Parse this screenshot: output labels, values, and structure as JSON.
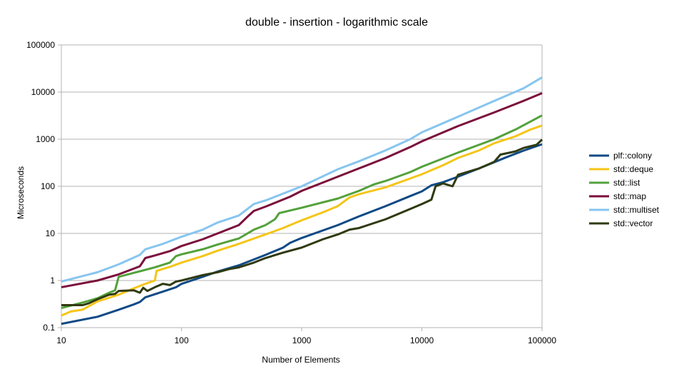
{
  "chart_data": {
    "type": "line",
    "title": "double - insertion - logarithmic scale",
    "xlabel": "Number of Elements",
    "ylabel": "Microseconds",
    "xscale": "log",
    "yscale": "log",
    "xlim": [
      10,
      100000
    ],
    "ylim": [
      0.1,
      100000
    ],
    "x_ticks": [
      "10",
      "100",
      "1000",
      "10000",
      "100000"
    ],
    "y_ticks": [
      "0.1",
      "1",
      "10",
      "100",
      "1000",
      "10000",
      "100000"
    ],
    "grid": "horizontal",
    "legend_position": "right",
    "series": [
      {
        "name": "plf::colony",
        "color": "#0f4a85",
        "points": [
          [
            10,
            0.12
          ],
          [
            20,
            0.17
          ],
          [
            30,
            0.24
          ],
          [
            40,
            0.31
          ],
          [
            45,
            0.35
          ],
          [
            50,
            0.44
          ],
          [
            70,
            0.58
          ],
          [
            90,
            0.72
          ],
          [
            100,
            0.85
          ],
          [
            150,
            1.2
          ],
          [
            200,
            1.55
          ],
          [
            300,
            2.1
          ],
          [
            400,
            2.8
          ],
          [
            500,
            3.5
          ],
          [
            700,
            5.0
          ],
          [
            800,
            6.3
          ],
          [
            1000,
            8
          ],
          [
            2000,
            15
          ],
          [
            3000,
            23
          ],
          [
            5000,
            38
          ],
          [
            8000,
            62
          ],
          [
            10000,
            78
          ],
          [
            12000,
            105
          ],
          [
            15000,
            122
          ],
          [
            20000,
            160
          ],
          [
            30000,
            240
          ],
          [
            50000,
            410
          ],
          [
            70000,
            570
          ],
          [
            100000,
            780
          ]
        ]
      },
      {
        "name": "std::deque",
        "color": "#f5c518",
        "points": [
          [
            10,
            0.18
          ],
          [
            12,
            0.22
          ],
          [
            15,
            0.24
          ],
          [
            20,
            0.36
          ],
          [
            30,
            0.5
          ],
          [
            40,
            0.68
          ],
          [
            50,
            0.85
          ],
          [
            60,
            1.0
          ],
          [
            62,
            1.6
          ],
          [
            80,
            1.95
          ],
          [
            100,
            2.4
          ],
          [
            150,
            3.3
          ],
          [
            200,
            4.3
          ],
          [
            300,
            6.0
          ],
          [
            500,
            9.5
          ],
          [
            700,
            13
          ],
          [
            1000,
            19
          ],
          [
            1500,
            28
          ],
          [
            2000,
            38
          ],
          [
            2500,
            58
          ],
          [
            3000,
            68
          ],
          [
            5000,
            95
          ],
          [
            10000,
            180
          ],
          [
            15000,
            280
          ],
          [
            20000,
            400
          ],
          [
            30000,
            580
          ],
          [
            40000,
            820
          ],
          [
            60000,
            1150
          ],
          [
            80000,
            1600
          ],
          [
            100000,
            1950
          ]
        ]
      },
      {
        "name": "std::list",
        "color": "#53a13b",
        "points": [
          [
            10,
            0.26
          ],
          [
            15,
            0.34
          ],
          [
            20,
            0.42
          ],
          [
            25,
            0.55
          ],
          [
            28,
            0.62
          ],
          [
            30,
            1.2
          ],
          [
            40,
            1.45
          ],
          [
            60,
            1.9
          ],
          [
            80,
            2.4
          ],
          [
            90,
            3.3
          ],
          [
            100,
            3.6
          ],
          [
            150,
            4.6
          ],
          [
            200,
            5.8
          ],
          [
            300,
            7.8
          ],
          [
            400,
            12
          ],
          [
            500,
            15
          ],
          [
            600,
            20
          ],
          [
            650,
            27
          ],
          [
            1000,
            35
          ],
          [
            2000,
            55
          ],
          [
            3000,
            80
          ],
          [
            4000,
            110
          ],
          [
            5000,
            130
          ],
          [
            8000,
            200
          ],
          [
            10000,
            260
          ],
          [
            20000,
            520
          ],
          [
            40000,
            1000
          ],
          [
            60000,
            1600
          ],
          [
            100000,
            3200
          ]
        ]
      },
      {
        "name": "std::map",
        "color": "#7b0f3b",
        "points": [
          [
            10,
            0.72
          ],
          [
            20,
            1.0
          ],
          [
            30,
            1.35
          ],
          [
            45,
            2.0
          ],
          [
            50,
            3.0
          ],
          [
            60,
            3.4
          ],
          [
            80,
            4.2
          ],
          [
            100,
            5.4
          ],
          [
            150,
            7.5
          ],
          [
            200,
            10
          ],
          [
            300,
            15
          ],
          [
            350,
            22
          ],
          [
            400,
            30
          ],
          [
            500,
            37
          ],
          [
            800,
            60
          ],
          [
            1000,
            80
          ],
          [
            2000,
            160
          ],
          [
            3000,
            240
          ],
          [
            5000,
            400
          ],
          [
            8000,
            680
          ],
          [
            10000,
            900
          ],
          [
            20000,
            1900
          ],
          [
            40000,
            3700
          ],
          [
            70000,
            6500
          ],
          [
            100000,
            9500
          ]
        ]
      },
      {
        "name": "std::multiset",
        "color": "#87c5f0",
        "points": [
          [
            10,
            0.95
          ],
          [
            20,
            1.5
          ],
          [
            30,
            2.2
          ],
          [
            45,
            3.5
          ],
          [
            50,
            4.6
          ],
          [
            70,
            6.0
          ],
          [
            100,
            8.5
          ],
          [
            150,
            12
          ],
          [
            200,
            17
          ],
          [
            300,
            24
          ],
          [
            400,
            42
          ],
          [
            500,
            50
          ],
          [
            700,
            70
          ],
          [
            1000,
            100
          ],
          [
            2000,
            230
          ],
          [
            3000,
            340
          ],
          [
            5000,
            580
          ],
          [
            8000,
            1000
          ],
          [
            10000,
            1400
          ],
          [
            20000,
            3000
          ],
          [
            40000,
            6500
          ],
          [
            70000,
            12000
          ],
          [
            100000,
            20500
          ]
        ]
      },
      {
        "name": "std::vector",
        "color": "#2f3a10",
        "points": [
          [
            10,
            0.3
          ],
          [
            15,
            0.3
          ],
          [
            17,
            0.33
          ],
          [
            20,
            0.4
          ],
          [
            25,
            0.5
          ],
          [
            28,
            0.52
          ],
          [
            30,
            0.6
          ],
          [
            40,
            0.62
          ],
          [
            45,
            0.55
          ],
          [
            48,
            0.7
          ],
          [
            52,
            0.6
          ],
          [
            60,
            0.72
          ],
          [
            70,
            0.85
          ],
          [
            80,
            0.8
          ],
          [
            90,
            0.95
          ],
          [
            100,
            1.0
          ],
          [
            150,
            1.3
          ],
          [
            200,
            1.5
          ],
          [
            250,
            1.75
          ],
          [
            300,
            1.9
          ],
          [
            400,
            2.4
          ],
          [
            500,
            3.0
          ],
          [
            700,
            3.9
          ],
          [
            1000,
            5.0
          ],
          [
            1500,
            7.5
          ],
          [
            2000,
            9.5
          ],
          [
            2500,
            12
          ],
          [
            3000,
            13
          ],
          [
            5000,
            20
          ],
          [
            8000,
            33
          ],
          [
            10000,
            42
          ],
          [
            12000,
            52
          ],
          [
            13000,
            100
          ],
          [
            15000,
            115
          ],
          [
            18000,
            100
          ],
          [
            20000,
            175
          ],
          [
            30000,
            240
          ],
          [
            40000,
            330
          ],
          [
            45000,
            470
          ],
          [
            60000,
            550
          ],
          [
            70000,
            650
          ],
          [
            90000,
            760
          ],
          [
            100000,
            980
          ]
        ]
      }
    ]
  }
}
